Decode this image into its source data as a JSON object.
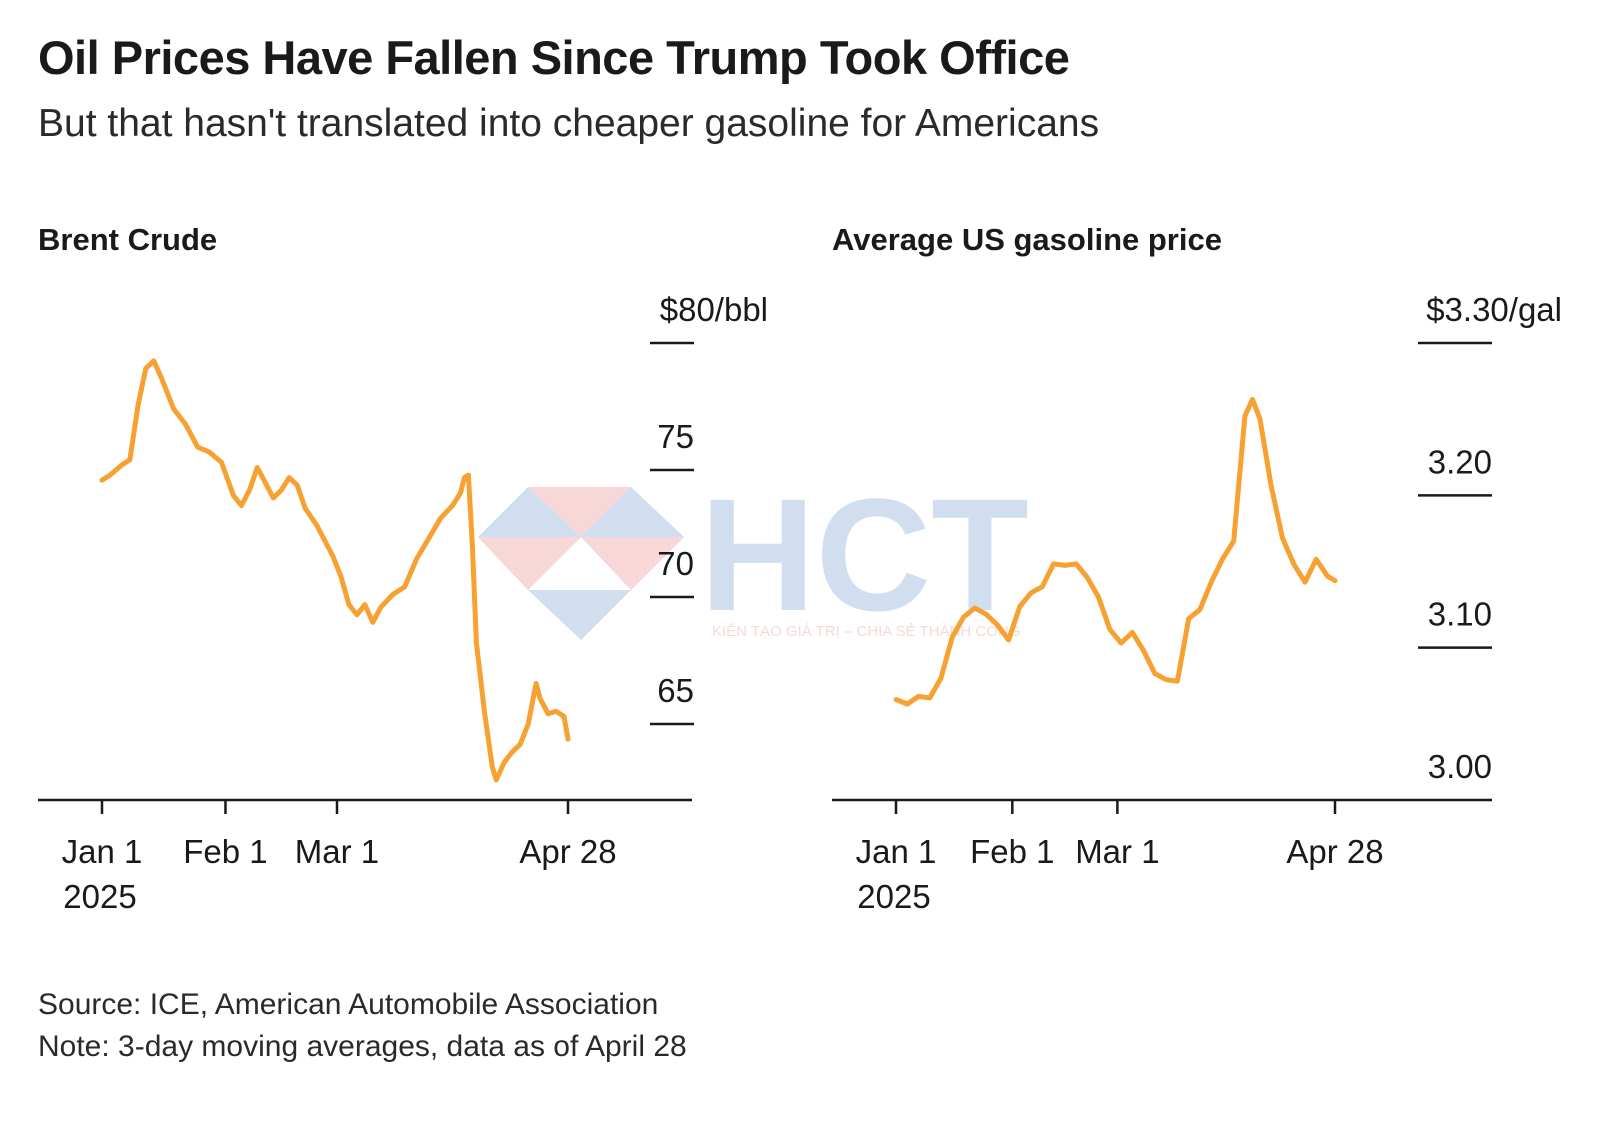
{
  "title": "Oil Prices Have Fallen Since Trump Took Office",
  "subtitle": "But that hasn't translated into cheaper gasoline for Americans",
  "footer": {
    "source": "Source: ICE, American Automobile Association",
    "note": "Note: 3-day moving averages, data as of April 28"
  },
  "colors": {
    "line": "#F7A133",
    "axis": "#1a1a1a"
  },
  "watermark": {
    "text": "HCT",
    "tagline": "KIẾN TẠO GIÁ TRỊ – CHIA SẺ THÀNH CÔNG"
  },
  "chart_data": [
    {
      "type": "line",
      "title": "Brent Crude",
      "y_unit_label": "$80/bbl",
      "ylim": [
        62,
        80
      ],
      "y_ticks": [
        {
          "value": 80,
          "label": "$80/bbl"
        },
        {
          "value": 75,
          "label": "75"
        },
        {
          "value": 70,
          "label": "70"
        },
        {
          "value": 65,
          "label": "65"
        }
      ],
      "x_ticks": [
        {
          "date": "2025-01-01",
          "label": "Jan 1",
          "sublabel": "2025"
        },
        {
          "date": "2025-02-01",
          "label": "Feb 1",
          "sublabel": ""
        },
        {
          "date": "2025-03-01",
          "label": "Mar 1",
          "sublabel": ""
        },
        {
          "date": "2025-04-28",
          "label": "Apr 28",
          "sublabel": ""
        }
      ],
      "xlim": [
        "2025-01-01",
        "2025-04-28"
      ],
      "series": [
        {
          "values": [
            {
              "x": "2025-01-01",
              "y": 74.6
            },
            {
              "x": "2025-01-03",
              "y": 74.8
            },
            {
              "x": "2025-01-06",
              "y": 75.2
            },
            {
              "x": "2025-01-08",
              "y": 75.4
            },
            {
              "x": "2025-01-10",
              "y": 77.5
            },
            {
              "x": "2025-01-12",
              "y": 79.0
            },
            {
              "x": "2025-01-14",
              "y": 79.3
            },
            {
              "x": "2025-01-16",
              "y": 78.6
            },
            {
              "x": "2025-01-19",
              "y": 77.4
            },
            {
              "x": "2025-01-22",
              "y": 76.8
            },
            {
              "x": "2025-01-25",
              "y": 75.9
            },
            {
              "x": "2025-01-28",
              "y": 75.7
            },
            {
              "x": "2025-01-31",
              "y": 75.3
            },
            {
              "x": "2025-02-03",
              "y": 74.0
            },
            {
              "x": "2025-02-05",
              "y": 73.6
            },
            {
              "x": "2025-02-07",
              "y": 74.2
            },
            {
              "x": "2025-02-09",
              "y": 75.1
            },
            {
              "x": "2025-02-11",
              "y": 74.5
            },
            {
              "x": "2025-02-13",
              "y": 73.9
            },
            {
              "x": "2025-02-15",
              "y": 74.2
            },
            {
              "x": "2025-02-17",
              "y": 74.7
            },
            {
              "x": "2025-02-19",
              "y": 74.4
            },
            {
              "x": "2025-02-21",
              "y": 73.5
            },
            {
              "x": "2025-02-24",
              "y": 72.8
            },
            {
              "x": "2025-02-26",
              "y": 72.2
            },
            {
              "x": "2025-02-28",
              "y": 71.6
            },
            {
              "x": "2025-03-02",
              "y": 70.8
            },
            {
              "x": "2025-03-04",
              "y": 69.7
            },
            {
              "x": "2025-03-06",
              "y": 69.3
            },
            {
              "x": "2025-03-08",
              "y": 69.7
            },
            {
              "x": "2025-03-10",
              "y": 69.0
            },
            {
              "x": "2025-03-12",
              "y": 69.6
            },
            {
              "x": "2025-03-15",
              "y": 70.1
            },
            {
              "x": "2025-03-18",
              "y": 70.4
            },
            {
              "x": "2025-03-21",
              "y": 71.5
            },
            {
              "x": "2025-03-24",
              "y": 72.3
            },
            {
              "x": "2025-03-27",
              "y": 73.1
            },
            {
              "x": "2025-03-30",
              "y": 73.6
            },
            {
              "x": "2025-04-01",
              "y": 74.1
            },
            {
              "x": "2025-04-02",
              "y": 74.7
            },
            {
              "x": "2025-04-03",
              "y": 74.8
            },
            {
              "x": "2025-04-04",
              "y": 72.0
            },
            {
              "x": "2025-04-05",
              "y": 68.2
            },
            {
              "x": "2025-04-07",
              "y": 65.5
            },
            {
              "x": "2025-04-09",
              "y": 63.3
            },
            {
              "x": "2025-04-10",
              "y": 62.8
            },
            {
              "x": "2025-04-12",
              "y": 63.5
            },
            {
              "x": "2025-04-14",
              "y": 63.9
            },
            {
              "x": "2025-04-16",
              "y": 64.2
            },
            {
              "x": "2025-04-18",
              "y": 65.0
            },
            {
              "x": "2025-04-20",
              "y": 66.6
            },
            {
              "x": "2025-04-21",
              "y": 66.0
            },
            {
              "x": "2025-04-23",
              "y": 65.4
            },
            {
              "x": "2025-04-25",
              "y": 65.5
            },
            {
              "x": "2025-04-27",
              "y": 65.3
            },
            {
              "x": "2025-04-28",
              "y": 64.4
            }
          ]
        }
      ]
    },
    {
      "type": "line",
      "title": "Average US gasoline price",
      "y_unit_label": "$3.30/gal",
      "ylim": [
        3.0,
        3.3
      ],
      "y_ticks": [
        {
          "value": 3.3,
          "label": "$3.30/gal"
        },
        {
          "value": 3.2,
          "label": "3.20"
        },
        {
          "value": 3.1,
          "label": "3.10"
        },
        {
          "value": 3.0,
          "label": "3.00"
        }
      ],
      "x_ticks": [
        {
          "date": "2025-01-01",
          "label": "Jan 1",
          "sublabel": "2025"
        },
        {
          "date": "2025-02-01",
          "label": "Feb 1",
          "sublabel": ""
        },
        {
          "date": "2025-03-01",
          "label": "Mar 1",
          "sublabel": ""
        },
        {
          "date": "2025-04-28",
          "label": "Apr 28",
          "sublabel": ""
        }
      ],
      "xlim": [
        "2025-01-01",
        "2025-04-28"
      ],
      "series": [
        {
          "values": [
            {
              "x": "2025-01-01",
              "y": 3.066
            },
            {
              "x": "2025-01-04",
              "y": 3.063
            },
            {
              "x": "2025-01-07",
              "y": 3.068
            },
            {
              "x": "2025-01-10",
              "y": 3.067
            },
            {
              "x": "2025-01-13",
              "y": 3.08
            },
            {
              "x": "2025-01-16",
              "y": 3.107
            },
            {
              "x": "2025-01-19",
              "y": 3.12
            },
            {
              "x": "2025-01-22",
              "y": 3.126
            },
            {
              "x": "2025-01-25",
              "y": 3.122
            },
            {
              "x": "2025-01-28",
              "y": 3.115
            },
            {
              "x": "2025-01-31",
              "y": 3.105
            },
            {
              "x": "2025-02-03",
              "y": 3.127
            },
            {
              "x": "2025-02-06",
              "y": 3.136
            },
            {
              "x": "2025-02-09",
              "y": 3.14
            },
            {
              "x": "2025-02-12",
              "y": 3.155
            },
            {
              "x": "2025-02-15",
              "y": 3.154
            },
            {
              "x": "2025-02-18",
              "y": 3.155
            },
            {
              "x": "2025-02-21",
              "y": 3.146
            },
            {
              "x": "2025-02-24",
              "y": 3.133
            },
            {
              "x": "2025-02-27",
              "y": 3.112
            },
            {
              "x": "2025-03-02",
              "y": 3.103
            },
            {
              "x": "2025-03-05",
              "y": 3.11
            },
            {
              "x": "2025-03-08",
              "y": 3.098
            },
            {
              "x": "2025-03-11",
              "y": 3.083
            },
            {
              "x": "2025-03-14",
              "y": 3.079
            },
            {
              "x": "2025-03-17",
              "y": 3.078
            },
            {
              "x": "2025-03-20",
              "y": 3.119
            },
            {
              "x": "2025-03-23",
              "y": 3.125
            },
            {
              "x": "2025-03-26",
              "y": 3.143
            },
            {
              "x": "2025-03-29",
              "y": 3.158
            },
            {
              "x": "2025-04-01",
              "y": 3.17
            },
            {
              "x": "2025-04-04",
              "y": 3.252
            },
            {
              "x": "2025-04-06",
              "y": 3.263
            },
            {
              "x": "2025-04-08",
              "y": 3.25
            },
            {
              "x": "2025-04-11",
              "y": 3.206
            },
            {
              "x": "2025-04-14",
              "y": 3.172
            },
            {
              "x": "2025-04-17",
              "y": 3.155
            },
            {
              "x": "2025-04-20",
              "y": 3.143
            },
            {
              "x": "2025-04-23",
              "y": 3.158
            },
            {
              "x": "2025-04-26",
              "y": 3.147
            },
            {
              "x": "2025-04-28",
              "y": 3.144
            }
          ]
        }
      ]
    }
  ]
}
